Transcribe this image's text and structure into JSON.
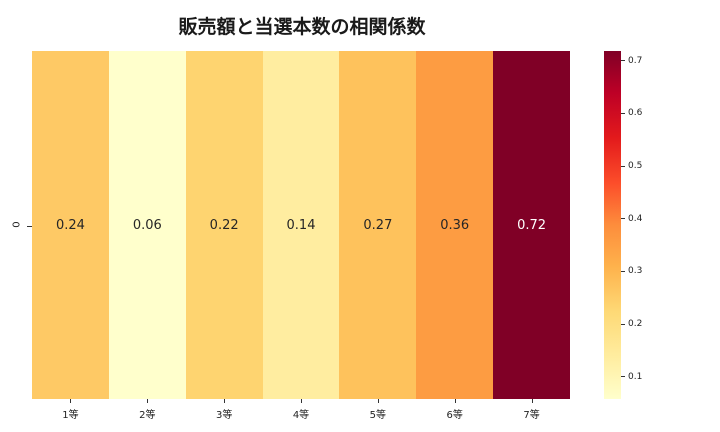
{
  "title": "販売額と当選本数の相関係数",
  "chart_data": {
    "type": "heatmap",
    "title": "販売額と当選本数の相関係数",
    "xlabel": "",
    "ylabel": "",
    "categories": [
      "1等",
      "2等",
      "3等",
      "4等",
      "5等",
      "6等",
      "7等"
    ],
    "y_categories": [
      "0"
    ],
    "values": [
      [
        0.24,
        0.06,
        0.22,
        0.14,
        0.27,
        0.36,
        0.72
      ]
    ],
    "labels": [
      "0.24",
      "0.06",
      "0.22",
      "0.14",
      "0.27",
      "0.36",
      "0.72"
    ],
    "cell_colors": [
      "#fec965",
      "#ffffcc",
      "#fed470",
      "#ffeda0",
      "#fec25c",
      "#fd9c42",
      "#800026"
    ],
    "text_colors": [
      "#262626",
      "#262626",
      "#262626",
      "#262626",
      "#262626",
      "#262626",
      "#ffffff"
    ],
    "colormap": "YlOrRd",
    "colorbar": {
      "range": [
        0.06,
        0.72
      ],
      "ticks": [
        "0.1",
        "0.2",
        "0.3",
        "0.4",
        "0.5",
        "0.6",
        "0.7"
      ]
    }
  }
}
